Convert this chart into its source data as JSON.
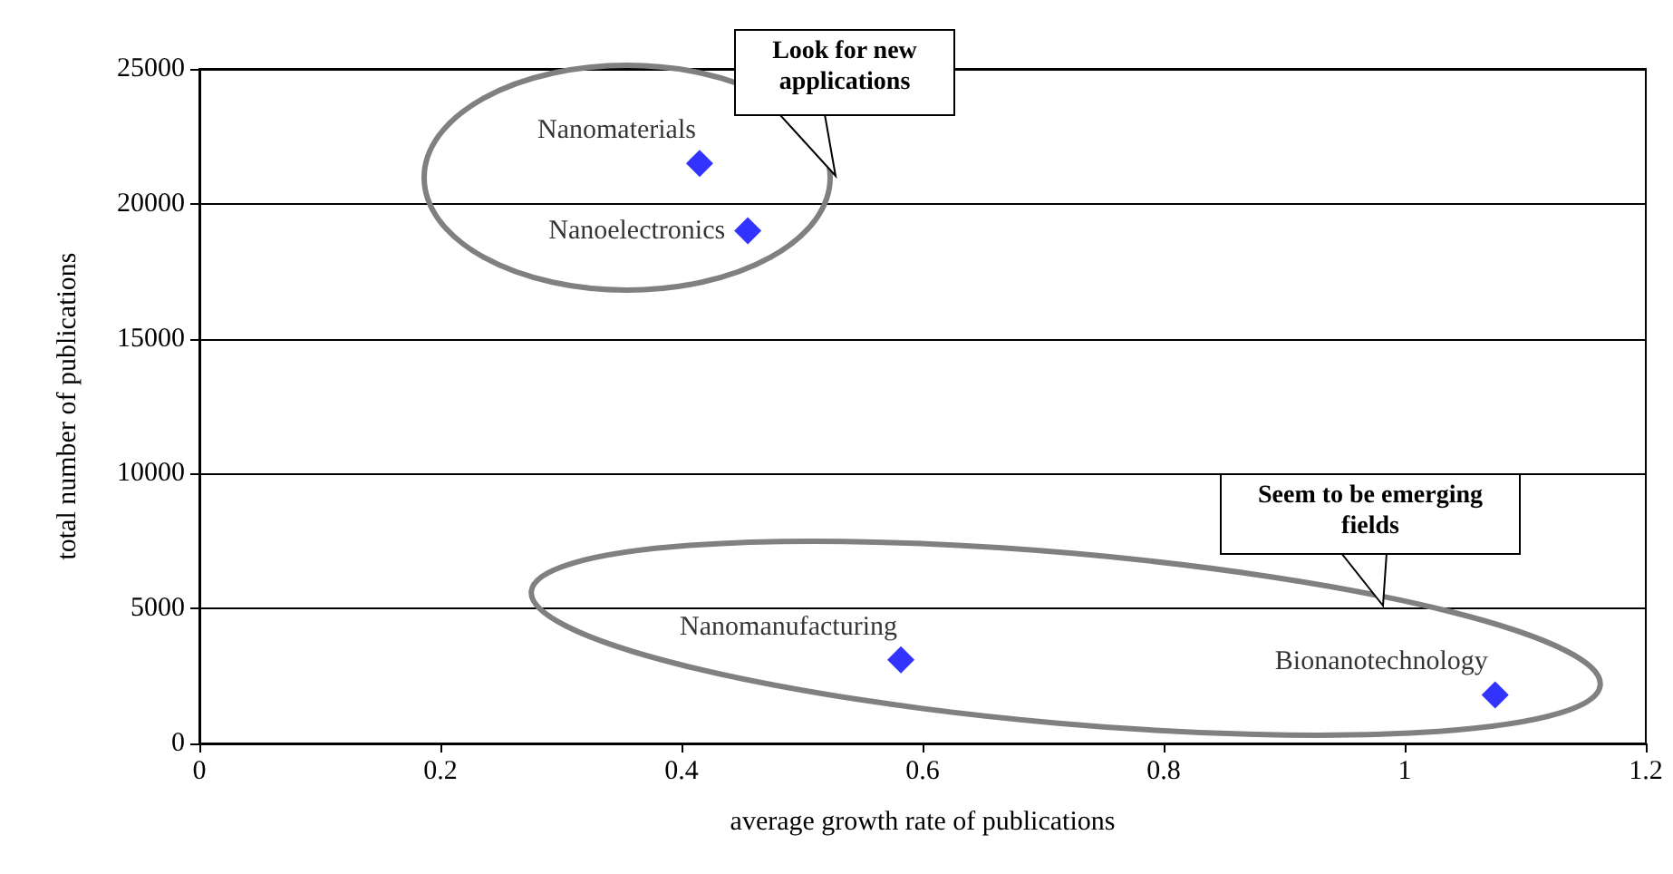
{
  "chart_data": {
    "type": "scatter",
    "xlabel": "average growth rate of publications",
    "ylabel": "total number of publications",
    "series": [
      {
        "name": "Nanomaterials",
        "color": "#0000ff",
        "x": [
          0.415
        ],
        "values": [
          21500
        ]
      },
      {
        "name": "Nanoelectronics",
        "color": "#0000ff",
        "x": [
          0.455
        ],
        "values": [
          19000
        ]
      },
      {
        "name": "Nanomanufacturing",
        "color": "#0000ff",
        "x": [
          0.582
        ],
        "values": [
          3100
        ]
      },
      {
        "name": "Bionanotechnology",
        "color": "#0000ff",
        "x": [
          1.075
        ],
        "values": [
          1800
        ]
      }
    ],
    "xlim": [
      0,
      1.2
    ],
    "xticks": [
      0,
      0.2,
      0.4,
      0.6,
      0.8,
      1,
      1.2
    ],
    "ylim": [
      0,
      25000
    ],
    "yticks": [
      0,
      5000,
      10000,
      15000,
      20000,
      25000
    ],
    "grid": "y",
    "legend": false,
    "marker": "diamond",
    "annotations": [
      "Look for new applications",
      "Seem to be emerging fields"
    ]
  }
}
